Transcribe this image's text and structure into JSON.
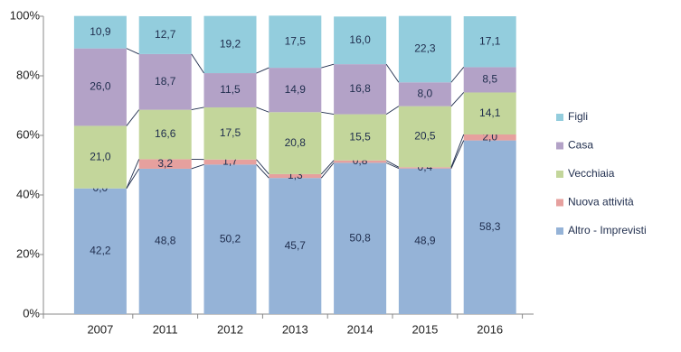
{
  "chart_data": {
    "type": "stacked_bar",
    "categories": [
      "2007",
      "2011",
      "2012",
      "2013",
      "2014",
      "2015",
      "2016"
    ],
    "series": [
      {
        "name": "Altro - Imprevisti",
        "color": "#95b3d7",
        "values": [
          42.2,
          48.8,
          50.2,
          45.7,
          50.8,
          48.9,
          58.3
        ],
        "value_labels": [
          "42,2",
          "48,8",
          "50,2",
          "45,7",
          "50,8",
          "48,9",
          "58,3"
        ]
      },
      {
        "name": "Nuova attività",
        "color": "#e6a09e",
        "values": [
          0.0,
          3.2,
          1.7,
          1.3,
          0.8,
          0.4,
          2.0
        ],
        "value_labels": [
          "0,0",
          "3,2",
          "1,7",
          "1,3",
          "0,8",
          "0,4",
          "2,0"
        ]
      },
      {
        "name": "Vecchiaia",
        "color": "#c3d69b",
        "values": [
          21.0,
          16.6,
          17.5,
          20.8,
          15.5,
          20.5,
          14.1
        ],
        "value_labels": [
          "21,0",
          "16,6",
          "17,5",
          "20,8",
          "15,5",
          "20,5",
          "14,1"
        ]
      },
      {
        "name": "Casa",
        "color": "#b3a2c7",
        "values": [
          26.0,
          18.7,
          11.5,
          14.9,
          16.8,
          8.0,
          8.5
        ],
        "value_labels": [
          "26,0",
          "18,7",
          "11,5",
          "14,9",
          "16,8",
          "8,0",
          "8,5"
        ]
      },
      {
        "name": "Figli",
        "color": "#93cddd",
        "values": [
          10.9,
          12.7,
          19.2,
          17.5,
          16.0,
          22.3,
          17.1
        ],
        "value_labels": [
          "10,9",
          "12,7",
          "19,2",
          "17,5",
          "16,0",
          "22,3",
          "17,1"
        ]
      }
    ],
    "ylim": [
      0,
      100
    ],
    "yticks": [
      {
        "value": 0,
        "label": "0%"
      },
      {
        "value": 20,
        "label": "20%"
      },
      {
        "value": 40,
        "label": "40%"
      },
      {
        "value": 60,
        "label": "60%"
      },
      {
        "value": 80,
        "label": "80%"
      },
      {
        "value": 100,
        "label": "100%"
      }
    ],
    "series_lines": true,
    "legend": "right"
  }
}
